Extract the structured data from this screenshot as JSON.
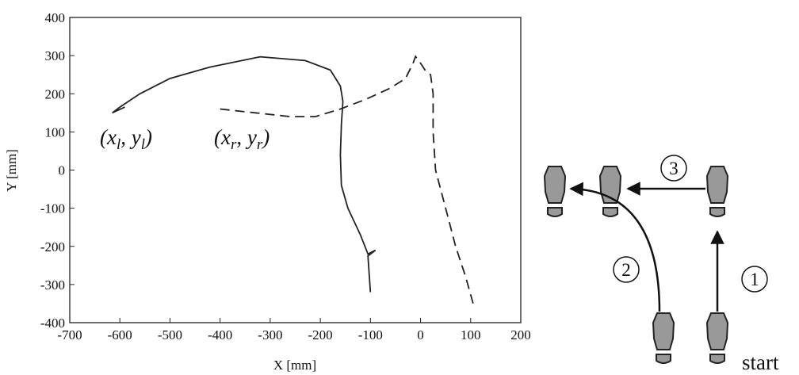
{
  "chart_data": {
    "type": "line",
    "xlabel": "X [mm]",
    "ylabel": "Y [mm]",
    "xlim": [
      -700,
      200
    ],
    "ylim": [
      -400,
      400
    ],
    "xticks": [
      -700,
      -600,
      -500,
      -400,
      -300,
      -200,
      -100,
      0,
      100,
      200
    ],
    "yticks": [
      -400,
      -300,
      -200,
      -100,
      0,
      100,
      200,
      300,
      400
    ],
    "series": [
      {
        "style": "solid",
        "color": "#222",
        "label_parts": [
          "(x",
          "l",
          ", y",
          "l",
          ")"
        ],
        "x": [
          -590,
          -615,
          -600,
          -560,
          -500,
          -420,
          -320,
          -230,
          -180,
          -160,
          -155,
          -158,
          -160,
          -158,
          -145,
          -120,
          -105,
          -90,
          -105,
          -100
        ],
        "values": [
          165,
          150,
          165,
          200,
          240,
          270,
          297,
          287,
          262,
          220,
          180,
          120,
          40,
          -40,
          -100,
          -170,
          -220,
          -210,
          -225,
          -320
        ]
      },
      {
        "style": "dashed",
        "color": "#222",
        "label_parts": [
          "(x",
          "r",
          ", y",
          "r",
          ")"
        ],
        "x": [
          -400,
          -330,
          -260,
          -210,
          -160,
          -110,
          -60,
          -30,
          -15,
          -10,
          0,
          10,
          20,
          25,
          25,
          30,
          50,
          70,
          90,
          105
        ],
        "values": [
          160,
          150,
          140,
          140,
          160,
          185,
          215,
          240,
          280,
          298,
          280,
          260,
          250,
          200,
          100,
          0,
          -100,
          -200,
          -280,
          -350
        ]
      }
    ]
  },
  "diagram": {
    "steps": [
      "1",
      "2",
      "3"
    ],
    "start_label": "start"
  }
}
